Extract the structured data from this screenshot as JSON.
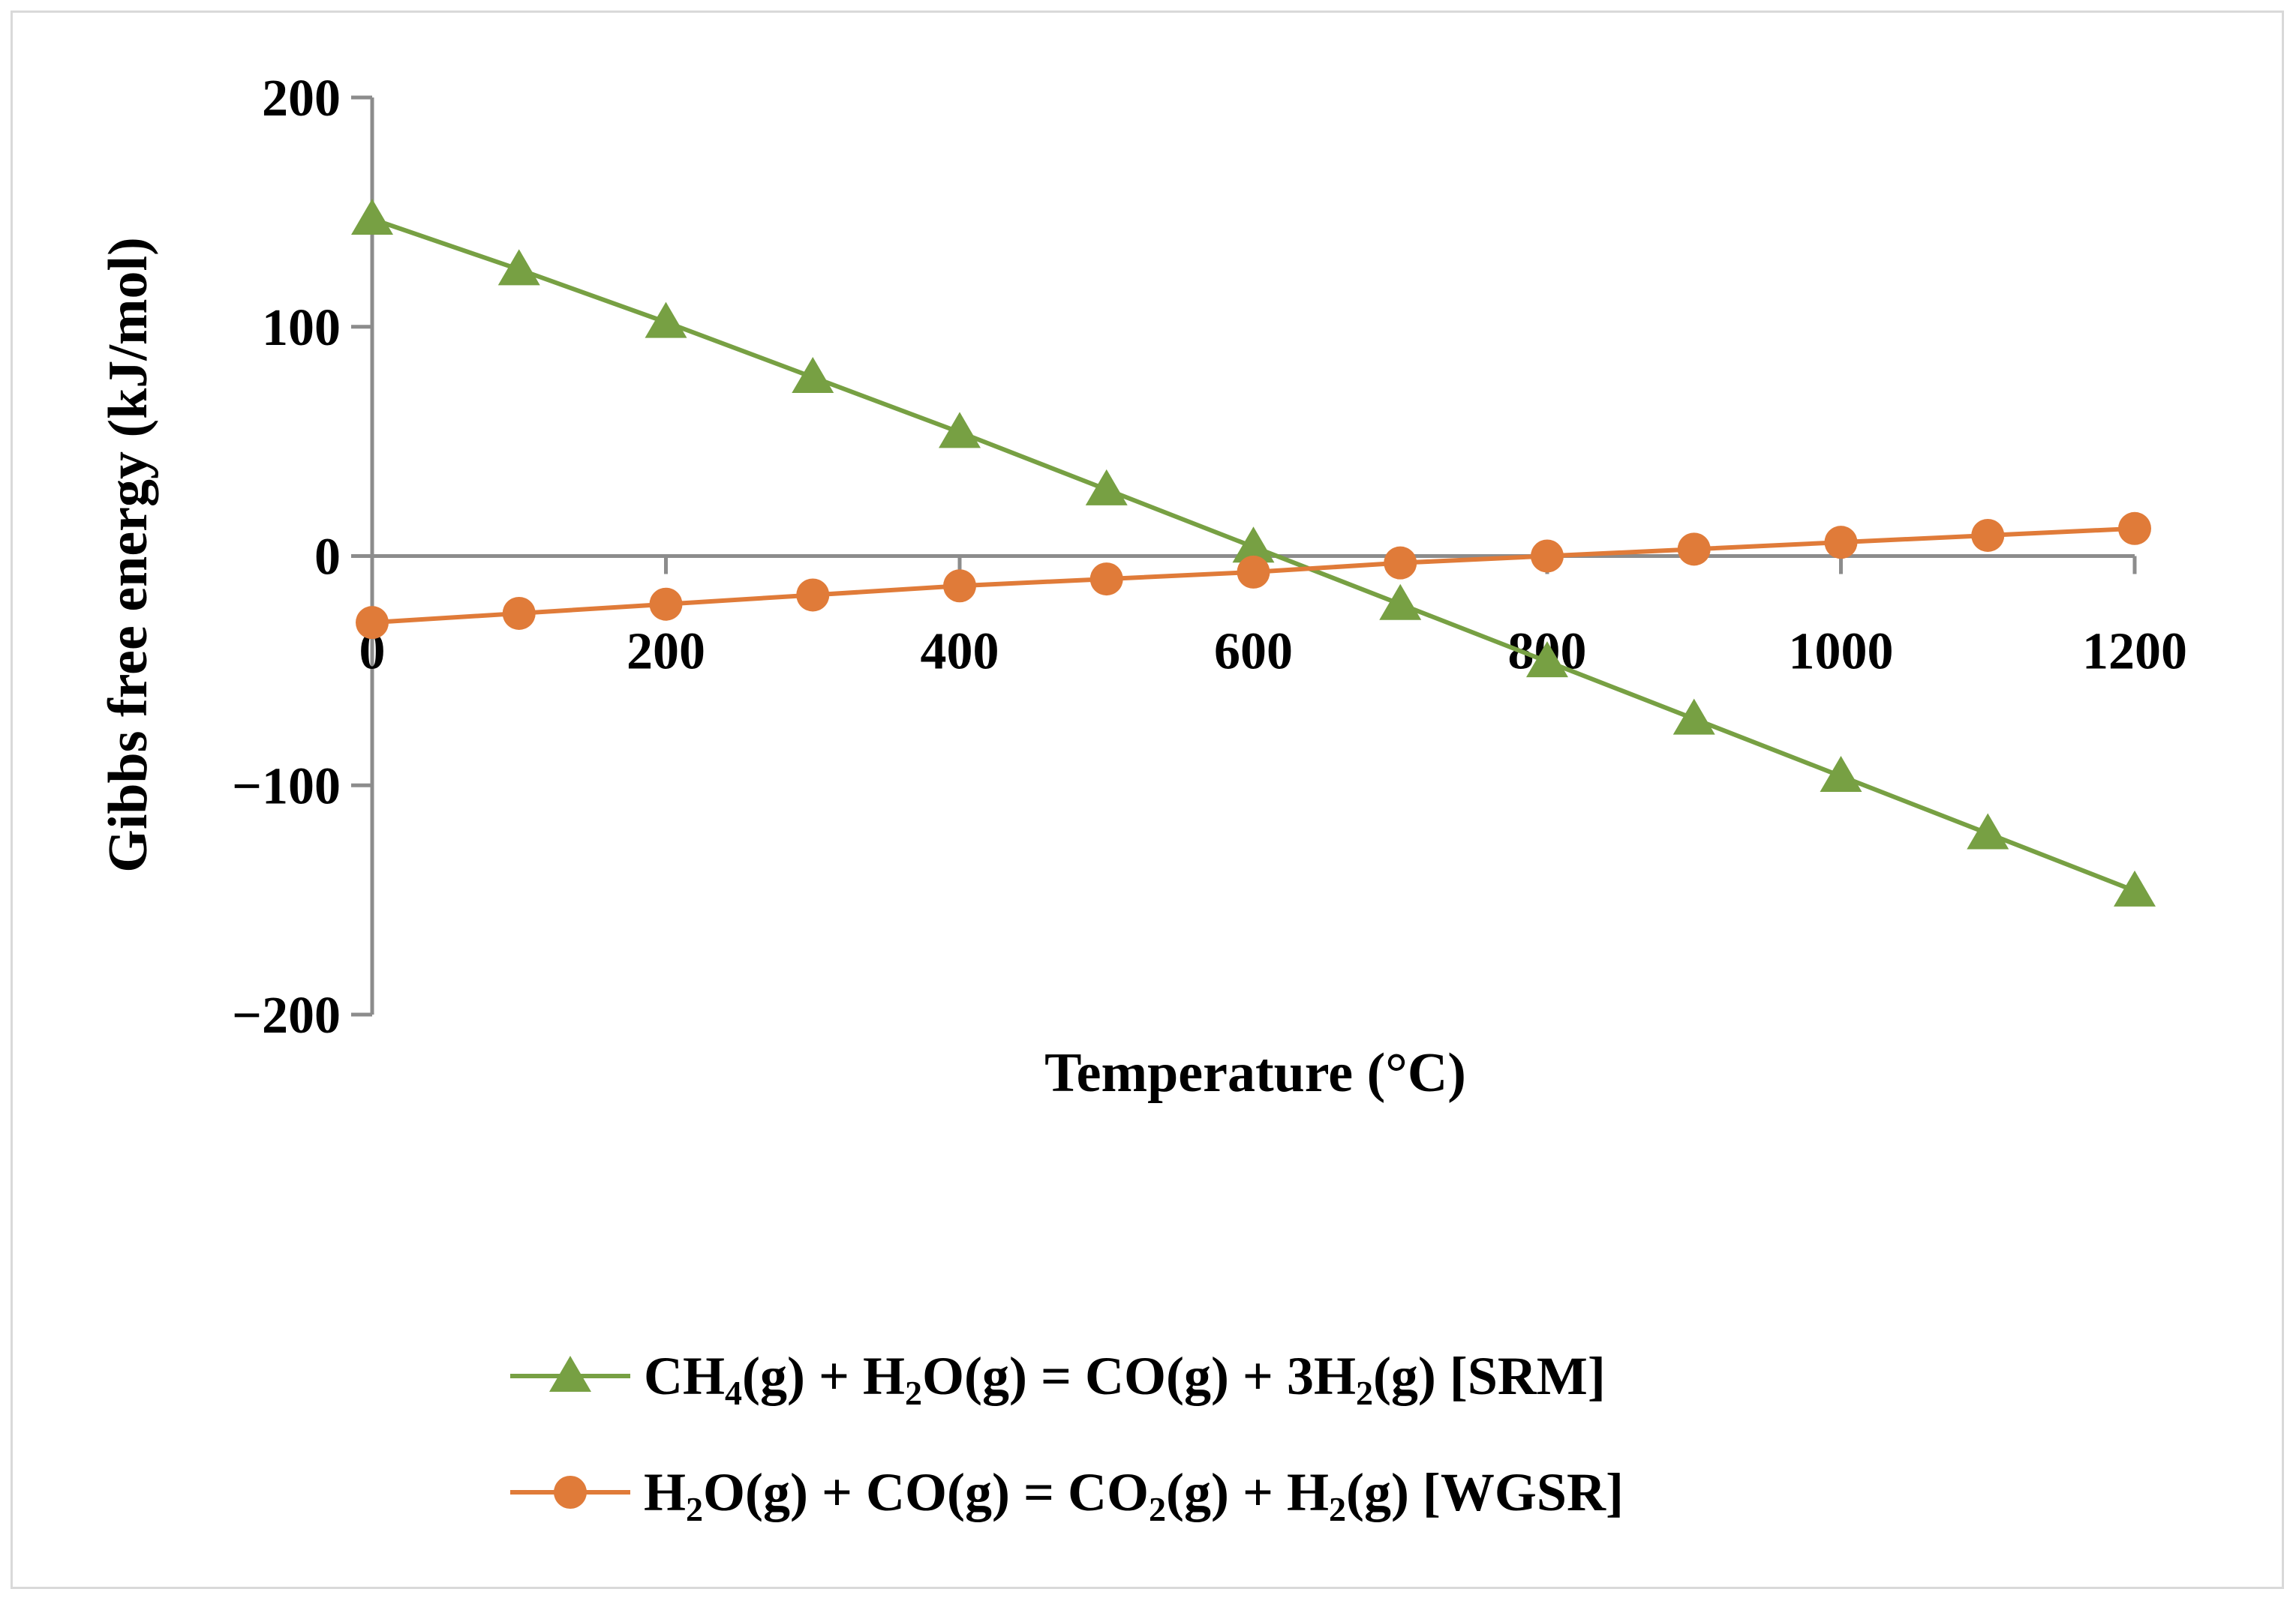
{
  "chart_data": {
    "type": "line",
    "title": "",
    "xlabel": "Temperature (°C)",
    "ylabel": "Gibbs free energy (kJ/mol)",
    "xlim": [
      0,
      1200
    ],
    "ylim": [
      -200,
      200
    ],
    "xticks": [
      "0",
      "200",
      "400",
      "600",
      "800",
      "1000",
      "1200"
    ],
    "yticks": [
      "200",
      "100",
      "0",
      "−100",
      "−200"
    ],
    "x": [
      0,
      100,
      200,
      300,
      400,
      500,
      600,
      700,
      800,
      900,
      1000,
      1100,
      1200
    ],
    "series": [
      {
        "name": "SRM",
        "marker": "triangle",
        "color": "#77a043",
        "legend_parts": [
          {
            "t": "CH"
          },
          {
            "t": "4",
            "sub": true
          },
          {
            "t": "(g) + H"
          },
          {
            "t": "2",
            "sub": true
          },
          {
            "t": "O(g) = CO(g) + 3H"
          },
          {
            "t": "2",
            "sub": true
          },
          {
            "t": "(g) [SRM]"
          }
        ],
        "values": [
          147,
          125,
          102,
          78,
          54,
          29,
          4,
          -21,
          -46,
          -71,
          -96,
          -121,
          -146
        ]
      },
      {
        "name": "WGSR",
        "marker": "circle",
        "color": "#e07b39",
        "legend_parts": [
          {
            "t": "H"
          },
          {
            "t": "2",
            "sub": true
          },
          {
            "t": "O(g) + CO(g) = CO"
          },
          {
            "t": "2",
            "sub": true
          },
          {
            "t": "(g) + H"
          },
          {
            "t": "2",
            "sub": true
          },
          {
            "t": "(g) [WGSR]"
          }
        ],
        "values": [
          -29,
          -25,
          -21,
          -17,
          -13,
          -10,
          -7,
          -3,
          0,
          3,
          6,
          9,
          12
        ]
      }
    ],
    "legend_position": "bottom",
    "grid": false,
    "axis_color": "#8c8c8c"
  }
}
